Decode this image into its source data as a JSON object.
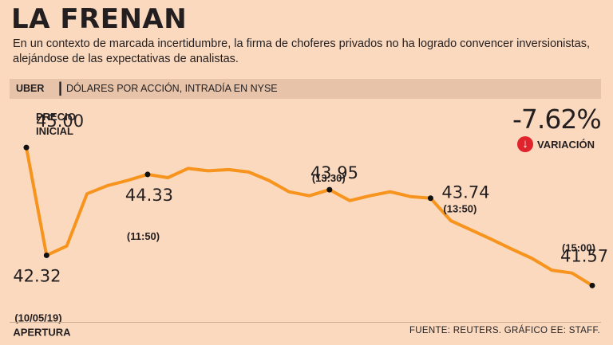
{
  "header": {
    "title": "LA FRENAN",
    "subtitle": "En un contexto de marcada incertidumbre, la firma de choferes privados no ha logrado convencer inversionistas, alejándose de las expectativas de analistas."
  },
  "bar": {
    "ticker": "UBER",
    "separator": "|",
    "description": "DÓLARES POR ACCIÓN, INTRADÍA EN NYSE"
  },
  "variation": {
    "value": "-7.62%",
    "label": "VARIACIÓN",
    "icon": "arrow-down-icon",
    "color": "#e0242c"
  },
  "footer": {
    "source": "FUENTE: REUTERS. GRÁFICO EE: STAFF."
  },
  "chart_data": {
    "type": "line",
    "title": "UBER",
    "ylabel": "Dólares por acción",
    "line_color": "#f7941d",
    "ylim": [
      41.2,
      45.2
    ],
    "values": [
      45.0,
      42.32,
      42.55,
      43.85,
      44.05,
      44.18,
      44.33,
      44.25,
      44.48,
      44.42,
      44.45,
      44.39,
      44.18,
      43.9,
      43.8,
      43.95,
      43.68,
      43.8,
      43.9,
      43.78,
      43.74,
      43.18,
      42.95,
      42.72,
      42.48,
      42.25,
      41.95,
      41.88,
      41.57
    ],
    "annotations": [
      {
        "index": 0,
        "value": "45.00",
        "label1": "PRECIO",
        "label2": "INICIAL"
      },
      {
        "index": 1,
        "value": "42.32",
        "label1": "(10/05/19)",
        "label2": "APERTURA"
      },
      {
        "index": 6,
        "value": "44.33",
        "label1": "(11:50)",
        "label2": ""
      },
      {
        "index": 15,
        "value": "43.95",
        "label1": "(13:30)",
        "label2": ""
      },
      {
        "index": 20,
        "value": "43.74",
        "label1": "(13:50)",
        "label2": ""
      },
      {
        "index": 28,
        "value": "41.57",
        "label1": "(15:00)",
        "label2": ""
      }
    ]
  }
}
